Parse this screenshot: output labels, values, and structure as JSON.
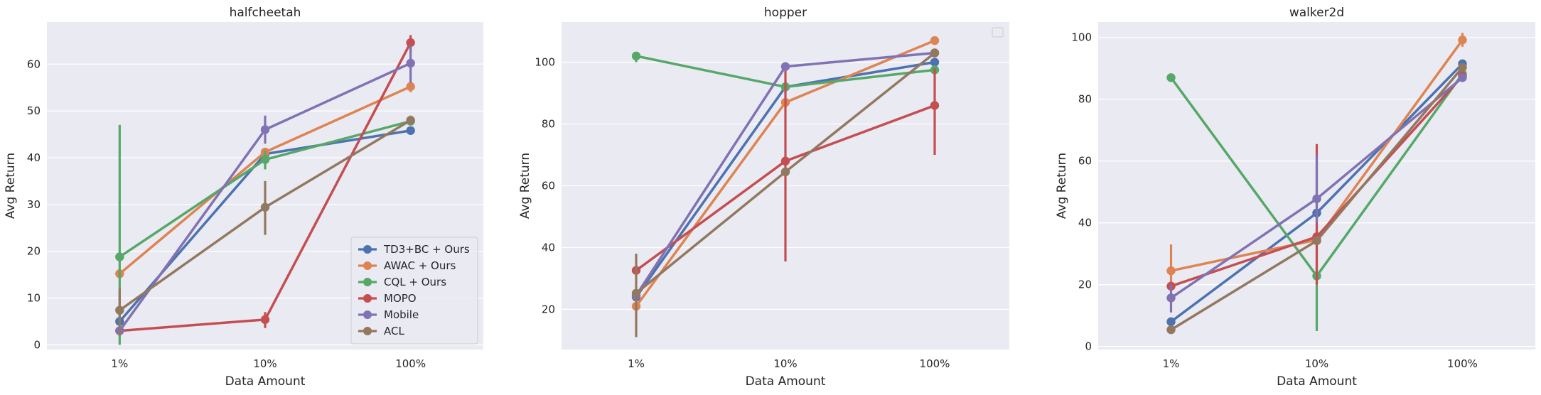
{
  "chart_data": [
    {
      "type": "line",
      "title": "halfcheetah",
      "xlabel": "Data Amount",
      "ylabel": "Avg Return",
      "categories": [
        "1%",
        "10%",
        "100%"
      ],
      "ylim": [
        -1,
        69
      ],
      "yticks": [
        0,
        10,
        20,
        30,
        40,
        50,
        60
      ],
      "grid": true,
      "legend": "lower-right",
      "series": [
        {
          "name": "TD3+BC + Ours",
          "color": "#4c72b0",
          "values": [
            5,
            40.8,
            45.8
          ],
          "err_lo": [
            5,
            40.8,
            45.8
          ],
          "err_hi": [
            5,
            40.8,
            45.8
          ]
        },
        {
          "name": "AWAC + Ours",
          "color": "#dd8452",
          "values": [
            15.2,
            41.2,
            55.2
          ],
          "err_lo": [
            15.2,
            41.2,
            54
          ],
          "err_hi": [
            15.2,
            41.2,
            56.5
          ]
        },
        {
          "name": "CQL + Ours",
          "color": "#55a868",
          "values": [
            18.8,
            39.6,
            47.8
          ],
          "err_lo": [
            0,
            37.5,
            47
          ],
          "err_hi": [
            47,
            41.5,
            48.5
          ]
        },
        {
          "name": "MOPO",
          "color": "#c44e52",
          "values": [
            3,
            5.4,
            64.6
          ],
          "err_lo": [
            3,
            3.6,
            62.5
          ],
          "err_hi": [
            3,
            7,
            66.2
          ]
        },
        {
          "name": "Mobile",
          "color": "#8172b3",
          "values": [
            3,
            46,
            60.2
          ],
          "err_lo": [
            2,
            43,
            56
          ],
          "err_hi": [
            4,
            49,
            64
          ]
        },
        {
          "name": "ACL",
          "color": "#937860",
          "values": [
            7.4,
            29.4,
            48
          ],
          "err_lo": [
            2,
            23.5,
            47
          ],
          "err_hi": [
            12,
            35,
            49
          ]
        }
      ]
    },
    {
      "type": "line",
      "title": "hopper",
      "xlabel": "Data Amount",
      "ylabel": "Avg Return",
      "categories": [
        "1%",
        "10%",
        "100%"
      ],
      "ylim": [
        7,
        113
      ],
      "yticks": [
        20,
        40,
        60,
        80,
        100
      ],
      "grid": true,
      "legend": "top-right",
      "series": [
        {
          "name": "TD3+BC + Ours",
          "color": "#4c72b0",
          "values": [
            24,
            92,
            100
          ],
          "err_lo": [
            24,
            92,
            100
          ],
          "err_hi": [
            24,
            92,
            100
          ]
        },
        {
          "name": "AWAC + Ours",
          "color": "#dd8452",
          "values": [
            21,
            87,
            107
          ],
          "err_lo": [
            21,
            87,
            107
          ],
          "err_hi": [
            21,
            87,
            107
          ]
        },
        {
          "name": "CQL + Ours",
          "color": "#55a868",
          "values": [
            102,
            92,
            97.5
          ],
          "err_lo": [
            100,
            90,
            96
          ],
          "err_hi": [
            103,
            94,
            99
          ]
        },
        {
          "name": "MOPO",
          "color": "#c44e52",
          "values": [
            32.6,
            68,
            86
          ],
          "err_lo": [
            32.6,
            35.5,
            70
          ],
          "err_hi": [
            32.6,
            99,
            98
          ]
        },
        {
          "name": "Mobile",
          "color": "#8172b3",
          "values": [
            24.5,
            98.6,
            103
          ],
          "err_lo": [
            24.5,
            98,
            103
          ],
          "err_hi": [
            24.5,
            99.5,
            103
          ]
        },
        {
          "name": "ACL",
          "color": "#937860",
          "values": [
            25.2,
            64.5,
            103
          ],
          "err_lo": [
            11,
            64.5,
            103
          ],
          "err_hi": [
            38,
            64.5,
            103
          ]
        }
      ]
    },
    {
      "type": "line",
      "title": "walker2d",
      "xlabel": "Data Amount",
      "ylabel": "Avg Return",
      "categories": [
        "1%",
        "10%",
        "100%"
      ],
      "ylim": [
        -1,
        105
      ],
      "yticks": [
        0,
        20,
        40,
        60,
        80,
        100
      ],
      "grid": true,
      "legend": "none",
      "series": [
        {
          "name": "TD3+BC + Ours",
          "color": "#4c72b0",
          "values": [
            8,
            43.2,
            91.5
          ],
          "err_lo": [
            8,
            43.2,
            91.5
          ],
          "err_hi": [
            8,
            43.2,
            91.5
          ]
        },
        {
          "name": "AWAC + Ours",
          "color": "#dd8452",
          "values": [
            24.5,
            34.5,
            99.2
          ],
          "err_lo": [
            18,
            34.5,
            97
          ],
          "err_hi": [
            33,
            34.5,
            101.5
          ]
        },
        {
          "name": "CQL + Ours",
          "color": "#55a868",
          "values": [
            87,
            22.8,
            88.2
          ],
          "err_lo": [
            87,
            5,
            88.2
          ],
          "err_hi": [
            87,
            40,
            88.2
          ]
        },
        {
          "name": "MOPO",
          "color": "#c44e52",
          "values": [
            19.5,
            35.5,
            87.5
          ],
          "err_lo": [
            19.5,
            20,
            87.5
          ],
          "err_hi": [
            19.5,
            65.5,
            87.5
          ]
        },
        {
          "name": "Mobile",
          "color": "#8172b3",
          "values": [
            15.7,
            47.8,
            87
          ],
          "err_lo": [
            11,
            40,
            87
          ],
          "err_hi": [
            20,
            62,
            87
          ]
        },
        {
          "name": "ACL",
          "color": "#937860",
          "values": [
            5.4,
            34.2,
            90.3
          ],
          "err_lo": [
            5.4,
            34.2,
            90.3
          ],
          "err_hi": [
            5.4,
            34.2,
            90.3
          ]
        }
      ]
    }
  ]
}
